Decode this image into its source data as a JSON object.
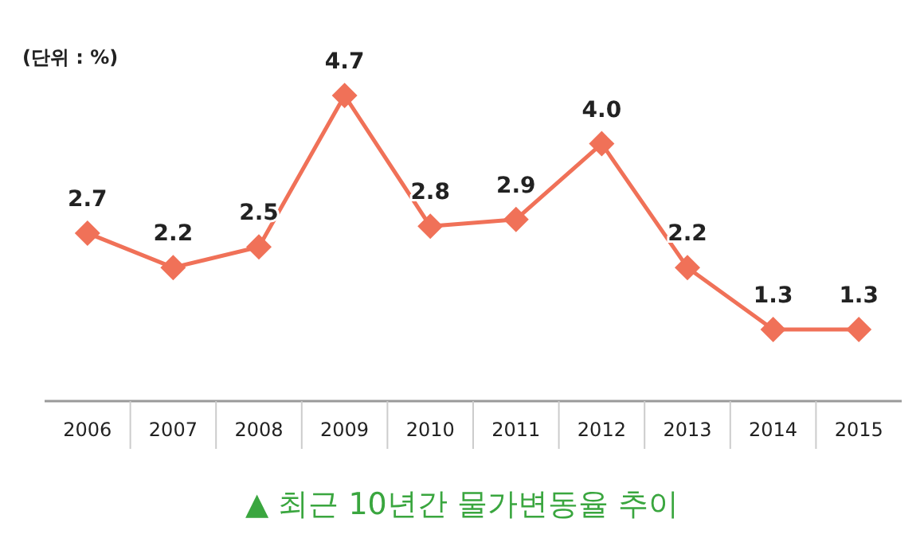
{
  "chart_data": {
    "type": "line",
    "title": "▲ 최근 10년간 물가변동율 추이",
    "annotations": [
      "(단위 : %)"
    ],
    "categories": [
      "2006",
      "2007",
      "2008",
      "2009",
      "2010",
      "2011",
      "2012",
      "2013",
      "2014",
      "2015"
    ],
    "series": [
      {
        "color": "#f07158",
        "values": [
          2.7,
          2.2,
          2.5,
          4.7,
          2.8,
          2.9,
          4.0,
          2.2,
          1.3,
          1.3
        ],
        "value_labels": [
          "2.7",
          "2.2",
          "2.5",
          "4.7",
          "2.8",
          "2.9",
          "4.0",
          "2.2",
          "1.3",
          "1.3"
        ]
      }
    ],
    "marker": "diamond",
    "line_style": "solid"
  }
}
